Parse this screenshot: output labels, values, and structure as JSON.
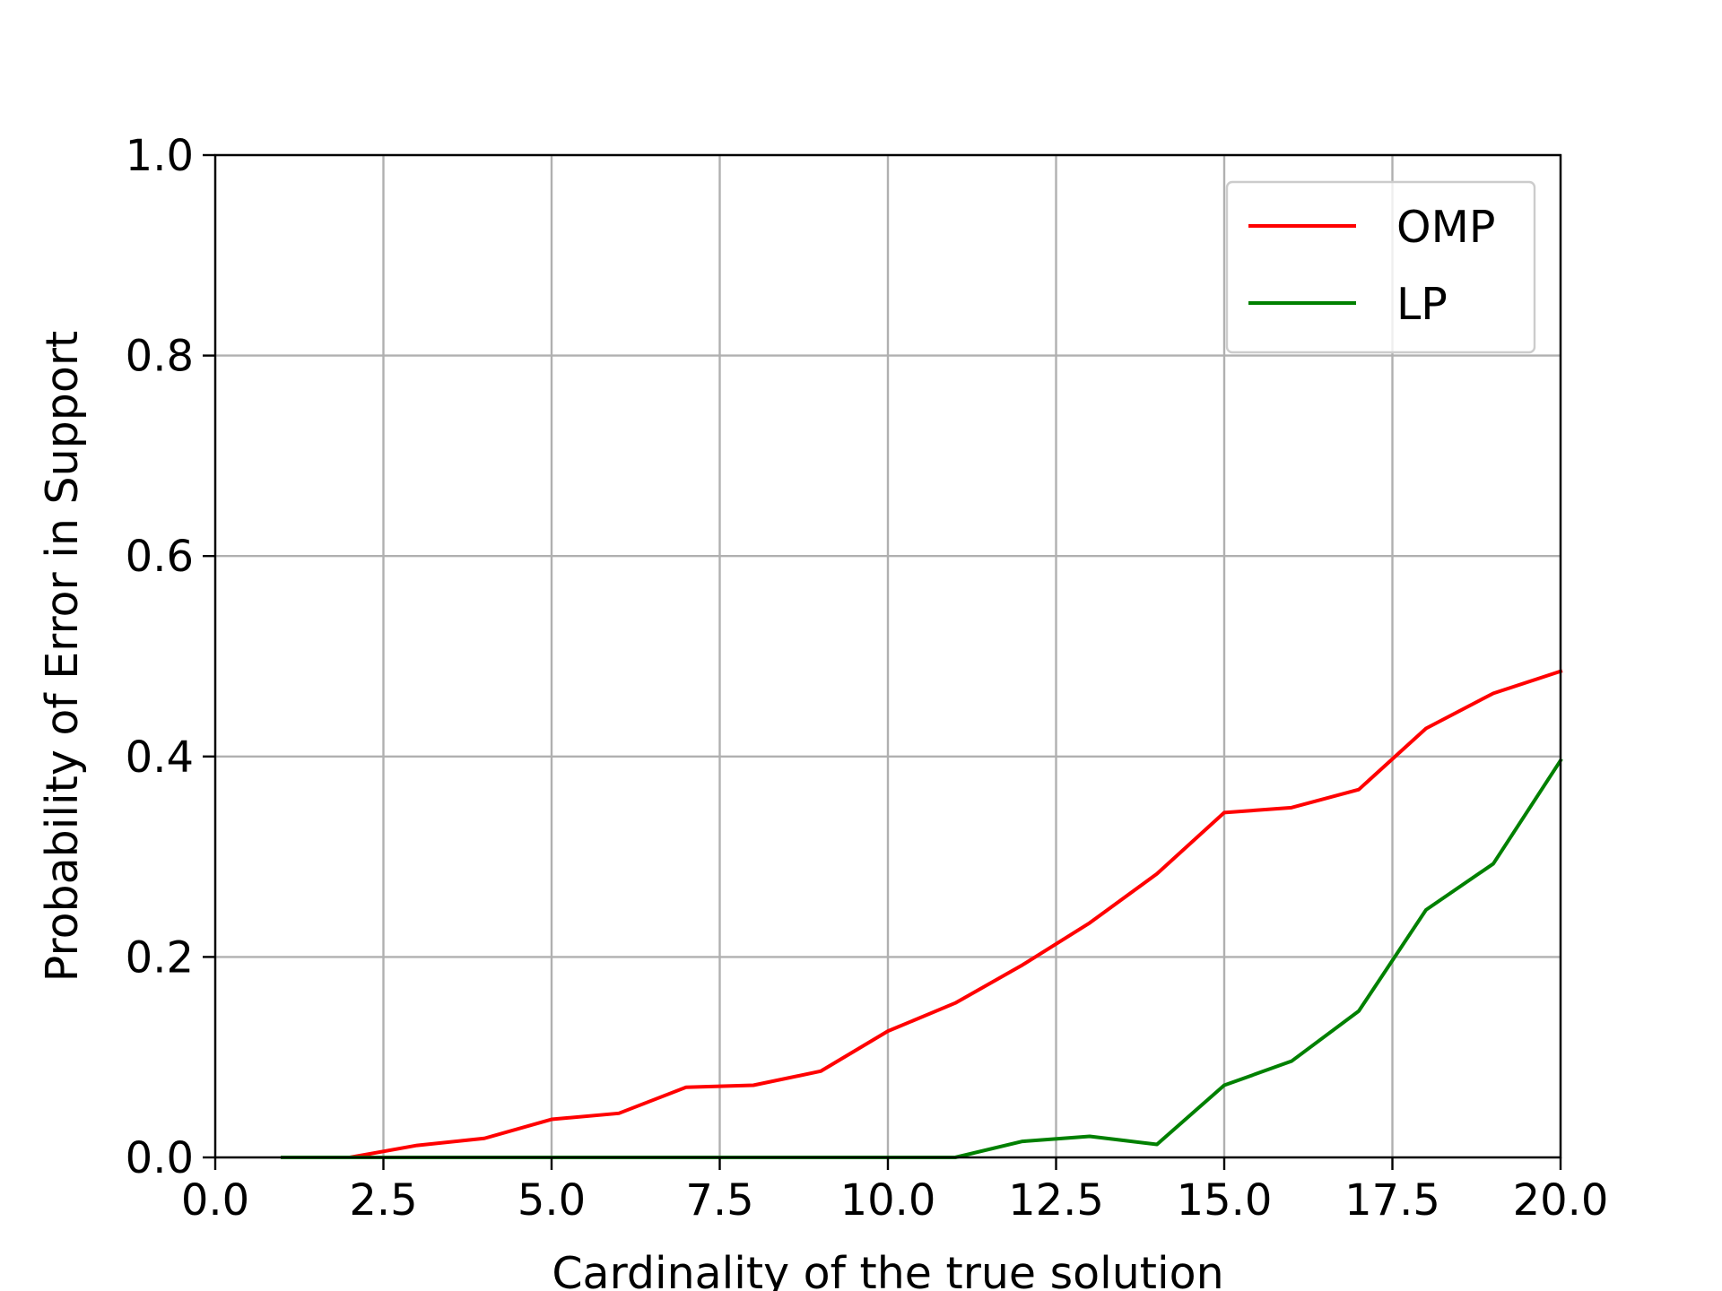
{
  "chart_data": {
    "type": "line",
    "xlabel": "Cardinality of the true solution",
    "ylabel": "Probability of Error in Support",
    "xlim": [
      0,
      20
    ],
    "ylim": [
      0,
      1
    ],
    "xticks": [
      "0.0",
      "2.5",
      "5.0",
      "7.5",
      "10.0",
      "12.5",
      "15.0",
      "17.5",
      "20.0"
    ],
    "yticks": [
      "0.0",
      "0.2",
      "0.4",
      "0.6",
      "0.8",
      "1.0"
    ],
    "grid": true,
    "legend_position": "top-right",
    "x": [
      1,
      2,
      3,
      4,
      5,
      6,
      7,
      8,
      9,
      10,
      11,
      12,
      13,
      14,
      15,
      16,
      17,
      18,
      19,
      20
    ],
    "series": [
      {
        "name": "OMP",
        "color": "#ff0000",
        "values": [
          0.0,
          0.0,
          0.012,
          0.019,
          0.038,
          0.044,
          0.07,
          0.072,
          0.086,
          0.126,
          0.154,
          0.192,
          0.234,
          0.283,
          0.344,
          0.349,
          0.367,
          0.428,
          0.463,
          0.485
        ]
      },
      {
        "name": "LP",
        "color": "#008000",
        "values": [
          0.0,
          0.0,
          0.0,
          0.0,
          0.0,
          0.0,
          0.0,
          0.0,
          0.0,
          0.0,
          0.0,
          0.016,
          0.021,
          0.013,
          0.072,
          0.096,
          0.146,
          0.247,
          0.293,
          0.396
        ]
      }
    ]
  }
}
